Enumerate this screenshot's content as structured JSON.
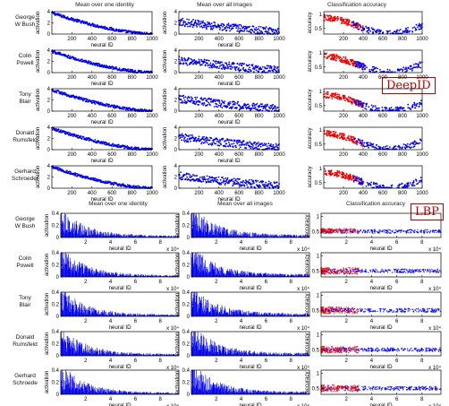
{
  "colors": {
    "series_blue": "#0000ee",
    "series_red": "#ee0000",
    "badge_red": "#c00000",
    "axis": "#000000"
  },
  "chart_data": [
    {
      "method": "DeepID",
      "badge": "DeepID",
      "type": "grid-of-plots",
      "column_titles": [
        "Mean over one identity",
        "Mean over all images",
        "Classification accuracy"
      ],
      "rows": [
        "George\nW Bush",
        "Colin\nPowell",
        "Tony\nBlair",
        "Donald\nRumsfeld",
        "Gerhard\nSchroeder"
      ],
      "panels": [
        {
          "name": "mean_over_one_identity",
          "type": "scatter",
          "xlabel": "neural ID",
          "ylabel": "activation",
          "xlim": [
            0,
            1000
          ],
          "ylim": [
            0,
            4
          ],
          "xticks": [
            "200",
            "400",
            "600",
            "800",
            "1000"
          ],
          "yticks": [
            "0",
            "2",
            "4"
          ],
          "trend": "descending",
          "start": 3.8,
          "end": 0.0
        },
        {
          "name": "mean_over_all_images",
          "type": "scatter",
          "xlabel": "neural ID",
          "ylabel": "activation",
          "xlim": [
            0,
            1000
          ],
          "ylim": [
            0,
            4
          ],
          "xticks": [
            "200",
            "400",
            "600",
            "800",
            "1000"
          ],
          "yticks": [
            "0",
            "2",
            "4"
          ],
          "trend": "noisy-descending",
          "start": 2.2,
          "end": 0.4
        },
        {
          "name": "classification_accuracy",
          "type": "scatter",
          "xlabel": "",
          "ylabel": "accuracy",
          "xlim": [
            0,
            1000
          ],
          "ylim": [
            0.3,
            1.1
          ],
          "xticks": [
            "200",
            "400",
            "600",
            "800",
            "1000"
          ],
          "yticks": [
            "0.5",
            "1"
          ],
          "trend": "u-shape",
          "series": [
            {
              "color": "red",
              "x_range": [
                0,
                400
              ]
            },
            {
              "color": "blue",
              "x_range": [
                300,
                1000
              ]
            }
          ]
        }
      ],
      "column_xlabels": [
        "neural ID",
        "neural ID",
        ""
      ]
    },
    {
      "method": "LBP",
      "badge": "LBP",
      "type": "grid-of-plots",
      "column_titles": [
        "Mean over one identity",
        "Mean over all images",
        "Classification accuracy"
      ],
      "rows": [
        "George\nW Bush",
        "Colin\nPowell",
        "Tony\nBlair",
        "Donald\nRumsfeld",
        "Gerhard\nSchroede"
      ],
      "panels": [
        {
          "name": "mean_over_one_identity",
          "type": "scatter",
          "xlabel": "neural ID",
          "ylabel": "activation",
          "xlim": [
            0,
            95000
          ],
          "ylim": [
            0,
            0.4
          ],
          "xticks": [
            "2",
            "4",
            "6",
            "8"
          ],
          "yticks": [
            "0",
            "0.2",
            "0.4"
          ],
          "x_multiplier": "x 10⁴",
          "trend": "descending-spiky",
          "start": 0.35,
          "end": 0.02
        },
        {
          "name": "mean_over_all_images",
          "type": "scatter",
          "xlabel": "neural ID",
          "ylabel": "activation",
          "xlim": [
            0,
            95000
          ],
          "ylim": [
            0,
            0.4
          ],
          "xticks": [
            "2",
            "4",
            "6",
            "8"
          ],
          "yticks": [
            "0",
            "0.2",
            "0.4"
          ],
          "x_multiplier": "x 10⁴",
          "trend": "descending-spiky",
          "start": 0.38,
          "end": 0.03
        },
        {
          "name": "classification_accuracy",
          "type": "scatter",
          "xlabel": "neural ID",
          "ylabel": "accuracy",
          "xlim": [
            0,
            95000
          ],
          "ylim": [
            0.3,
            1.1
          ],
          "xticks": [
            "2",
            "4",
            "6",
            "8"
          ],
          "yticks": [
            "0.5",
            "1"
          ],
          "x_multiplier": "x 10⁴",
          "trend": "flat-band",
          "series": [
            {
              "color": "red",
              "x_range": [
                0,
                30000
              ]
            },
            {
              "color": "blue",
              "x_range": [
                0,
                95000
              ]
            }
          ]
        }
      ],
      "column_xlabels": [
        "neural ID",
        "neural ID",
        "neural ID"
      ]
    }
  ]
}
